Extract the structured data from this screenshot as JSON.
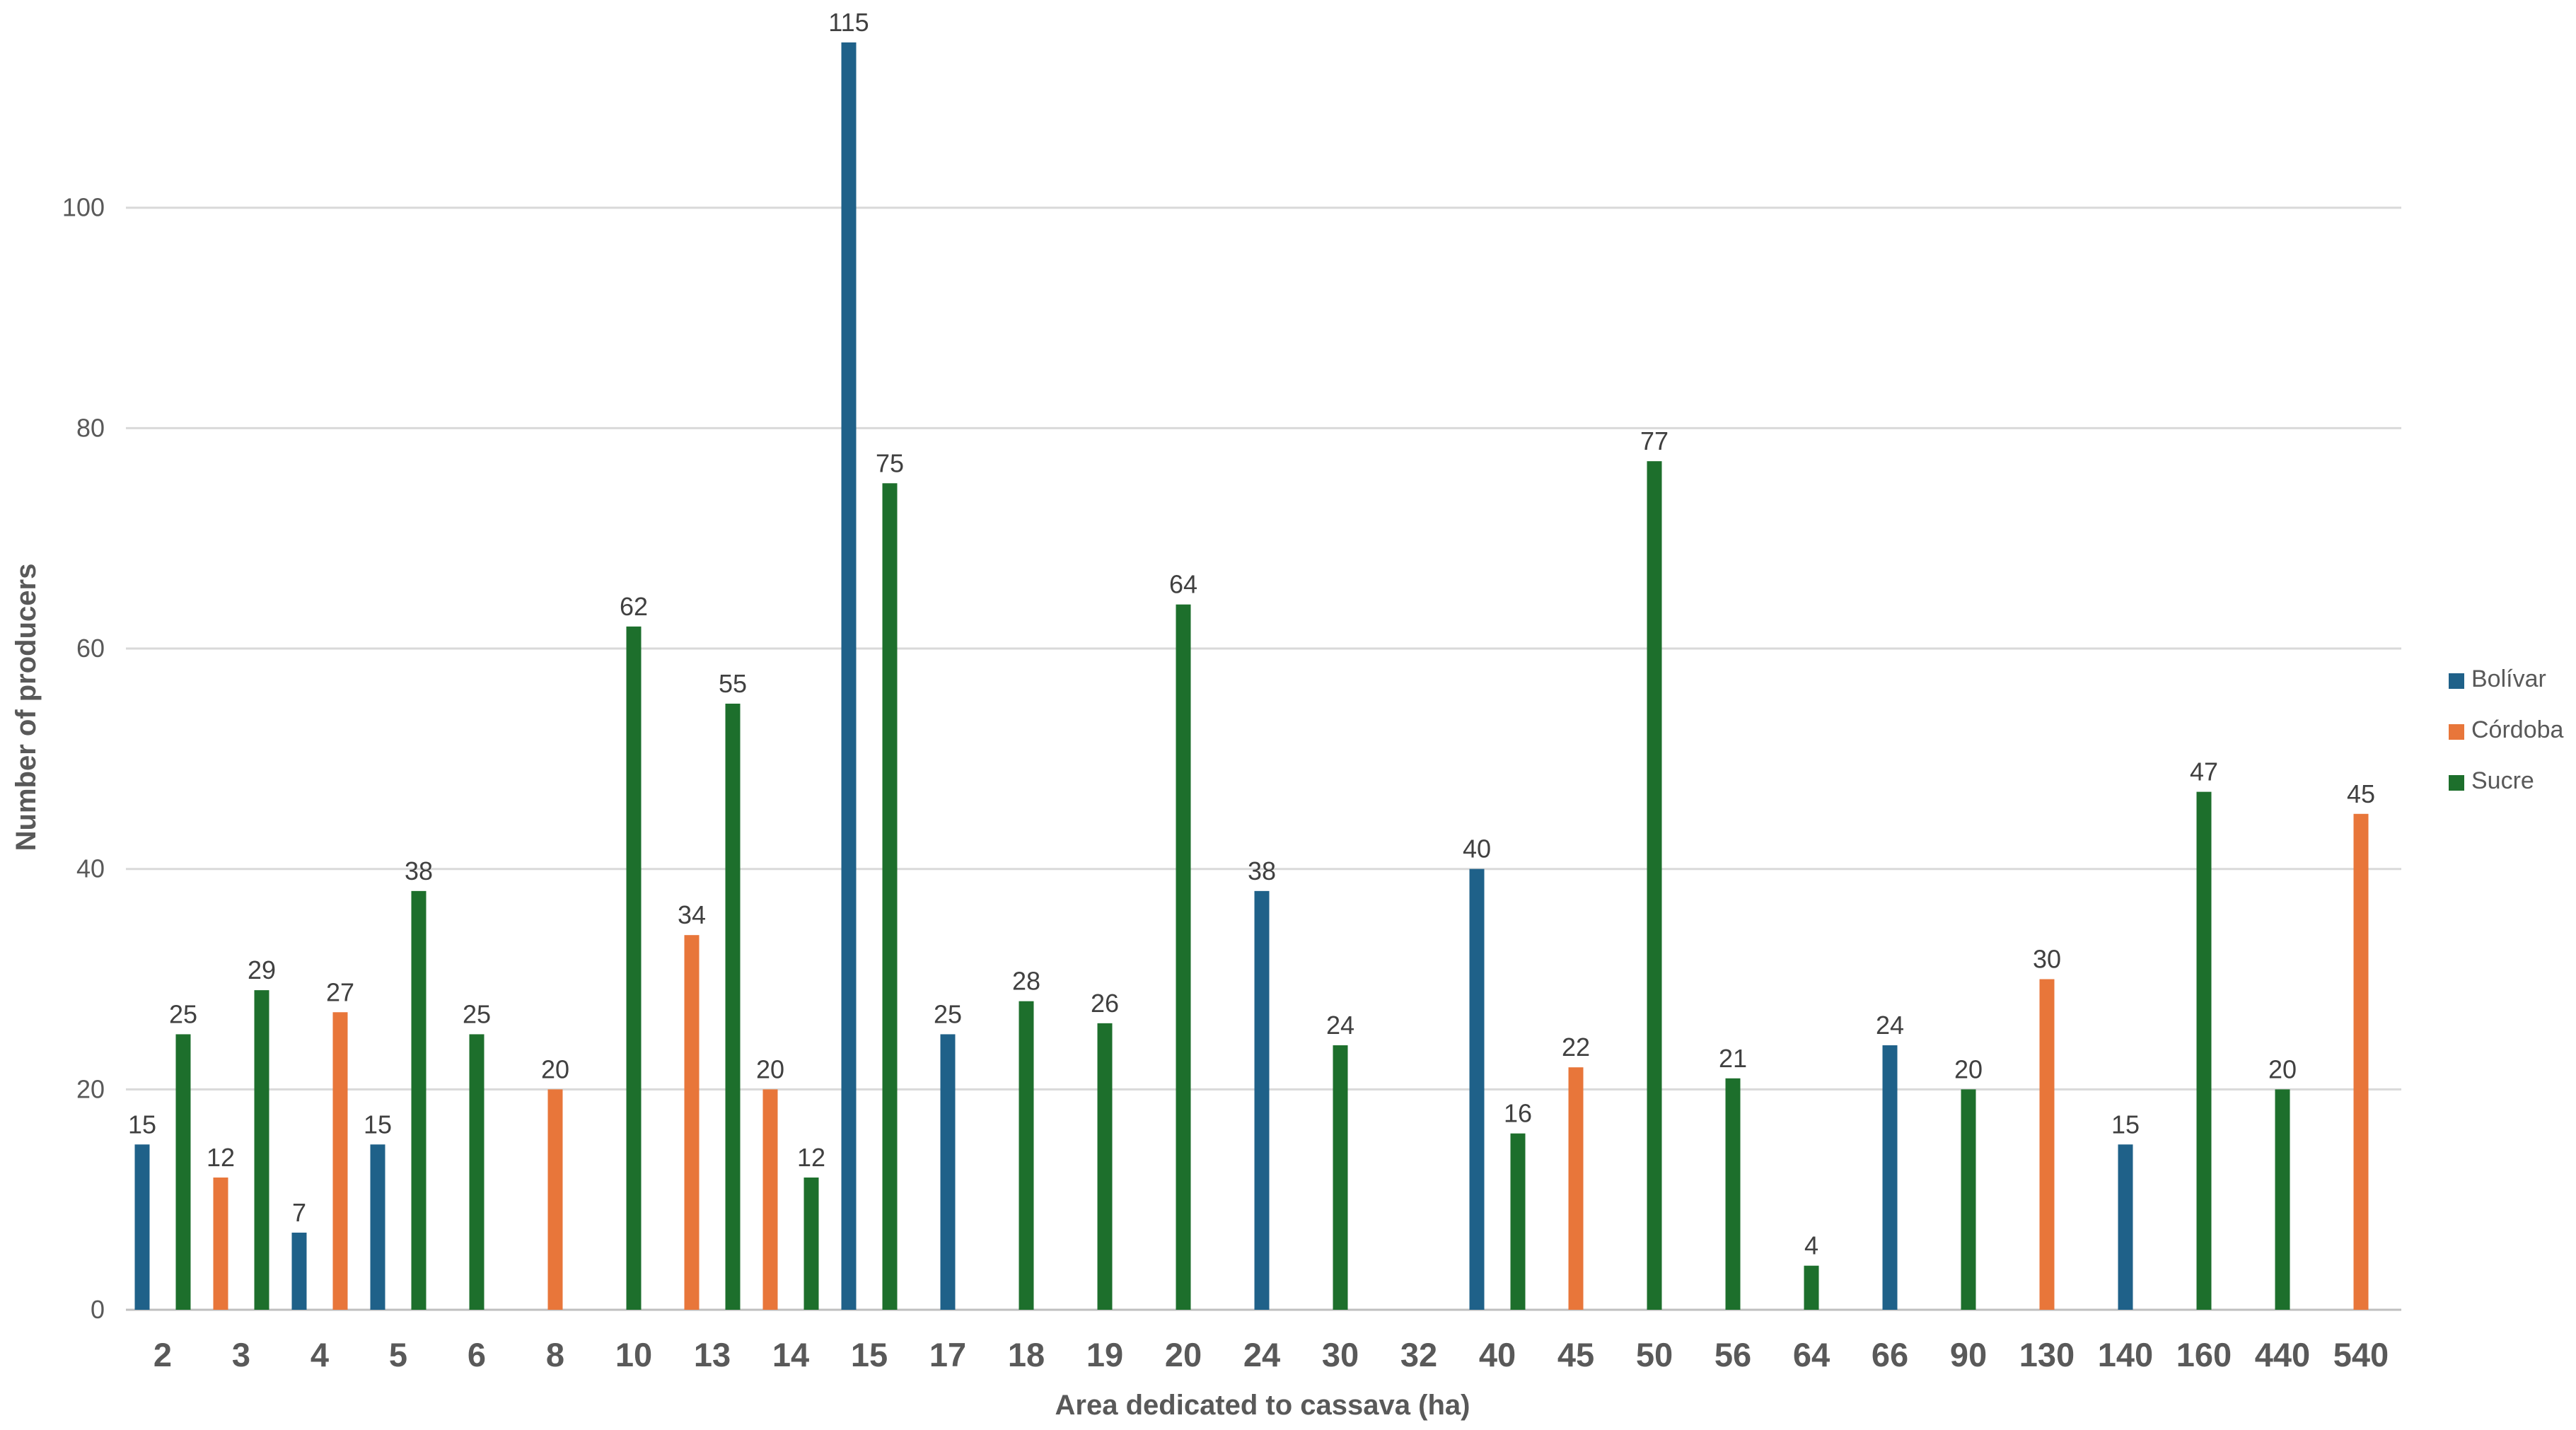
{
  "chart_data": {
    "type": "bar",
    "title": "",
    "xlabel": "Area dedicated to cassava (ha)",
    "ylabel": "Number of producers",
    "ylim": [
      0,
      115
    ],
    "yticks": [
      0,
      20,
      40,
      60,
      80,
      100
    ],
    "grid": true,
    "legend_position": "right",
    "categories": [
      "2",
      "3",
      "4",
      "5",
      "6",
      "8",
      "10",
      "13",
      "14",
      "15",
      "17",
      "18",
      "19",
      "20",
      "24",
      "30",
      "32",
      "40",
      "45",
      "50",
      "56",
      "64",
      "66",
      "90",
      "130",
      "140",
      "160",
      "440",
      "540"
    ],
    "series": [
      {
        "name": "Bolívar",
        "color": "#1F6189",
        "values": [
          15,
          null,
          7,
          15,
          null,
          null,
          null,
          null,
          null,
          115,
          25,
          null,
          null,
          null,
          38,
          null,
          null,
          40,
          null,
          null,
          null,
          null,
          24,
          null,
          null,
          15,
          null,
          null,
          null
        ]
      },
      {
        "name": "Córdoba",
        "color": "#E8763A",
        "values": [
          null,
          12,
          27,
          null,
          null,
          20,
          null,
          34,
          20,
          null,
          null,
          null,
          null,
          null,
          null,
          null,
          null,
          null,
          22,
          null,
          null,
          null,
          null,
          null,
          30,
          null,
          null,
          null,
          45
        ]
      },
      {
        "name": "Sucre",
        "color": "#1D6F2C",
        "values": [
          25,
          29,
          null,
          38,
          25,
          null,
          62,
          55,
          12,
          75,
          null,
          28,
          26,
          64,
          null,
          24,
          null,
          16,
          null,
          77,
          21,
          4,
          null,
          20,
          null,
          null,
          47,
          20,
          null
        ]
      }
    ]
  }
}
